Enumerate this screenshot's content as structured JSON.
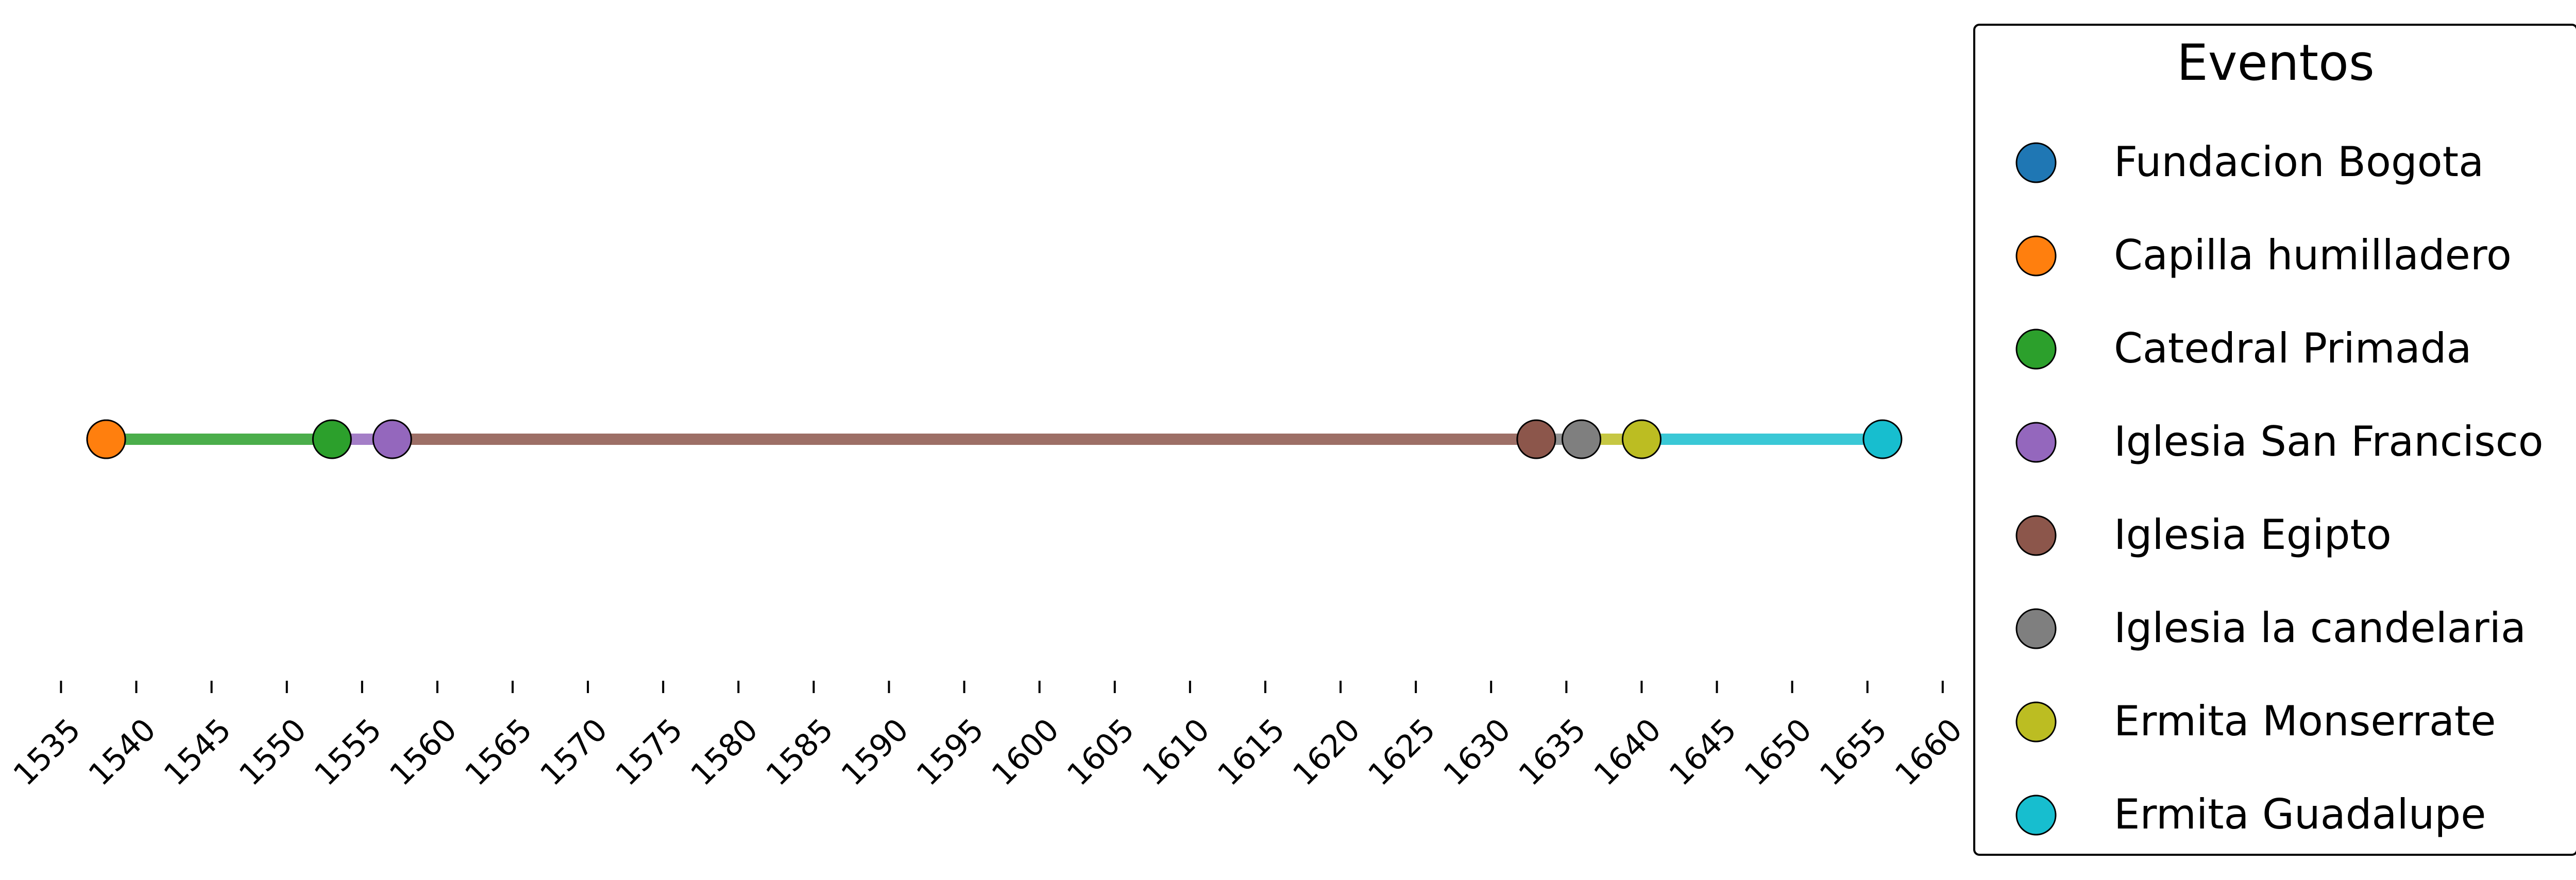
{
  "chart_data": {
    "type": "scatter",
    "xlim": [
      1533,
      1661
    ],
    "x_ticks": [
      1535,
      1540,
      1545,
      1550,
      1555,
      1560,
      1565,
      1570,
      1575,
      1580,
      1585,
      1590,
      1595,
      1600,
      1605,
      1610,
      1615,
      1620,
      1625,
      1630,
      1635,
      1640,
      1645,
      1650,
      1655,
      1660
    ],
    "x_tick_labels": [
      "1535",
      "1540",
      "1545",
      "1550",
      "1555",
      "1560",
      "1565",
      "1570",
      "1575",
      "1580",
      "1585",
      "1590",
      "1595",
      "1600",
      "1605",
      "1610",
      "1615",
      "1620",
      "1625",
      "1630",
      "1635",
      "1640",
      "1645",
      "1650",
      "1655",
      "1660"
    ],
    "y_axis_visible": false,
    "grid": false,
    "legend": {
      "title": "Eventos",
      "placement": "right"
    },
    "series": [
      {
        "name": "Fundacion Bogota",
        "x": 1538,
        "color": "#1f77b4"
      },
      {
        "name": "Capilla humilladero",
        "x": 1538,
        "color": "#ff7f0e"
      },
      {
        "name": "Catedral Primada",
        "x": 1553,
        "color": "#2ca02c"
      },
      {
        "name": "Iglesia San Francisco",
        "x": 1557,
        "color": "#9467bd"
      },
      {
        "name": "Iglesia Egipto",
        "x": 1633,
        "color": "#8c564b"
      },
      {
        "name": "Iglesia la candelaria",
        "x": 1636,
        "color": "#7f7f7f"
      },
      {
        "name": "Ermita Monserrate",
        "x": 1640,
        "color": "#bcbd22"
      },
      {
        "name": "Ermita Guadalupe",
        "x": 1656,
        "color": "#17becf"
      }
    ]
  }
}
